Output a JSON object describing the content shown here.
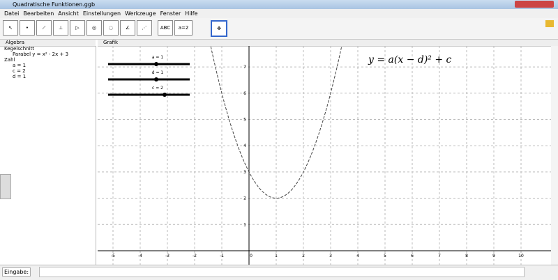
{
  "window": {
    "title": "Quadratische Funktionen.ggb"
  },
  "menu": [
    "Datei",
    "Bearbeiten",
    "Ansicht",
    "Einstellungen",
    "Werkzeuge",
    "Fenster",
    "Hilfe"
  ],
  "toolbar": {
    "text_tool": "ABC",
    "slider_tool": "a=2"
  },
  "algebra": {
    "header": "Algebra",
    "groups": [
      {
        "name": "Kegelschnitt",
        "items": [
          "Parabel y = x² - 2x + 3"
        ]
      },
      {
        "name": "Zahl",
        "items": [
          "a = 1",
          "c = 2",
          "d = 1"
        ]
      }
    ]
  },
  "graphics": {
    "header": "Grafik",
    "formula": "y = a(x − d)² + c",
    "sliders": [
      "a = 1",
      "d = 1",
      "c = 2"
    ],
    "x_ticks": [
      -5,
      -4,
      -3,
      -2,
      -1,
      0,
      1,
      2,
      3,
      4,
      5,
      6,
      7,
      8,
      9,
      10
    ],
    "y_ticks": [
      1,
      2,
      3,
      4,
      5,
      6,
      7
    ]
  },
  "input_bar": {
    "label": "Eingabe:"
  }
}
